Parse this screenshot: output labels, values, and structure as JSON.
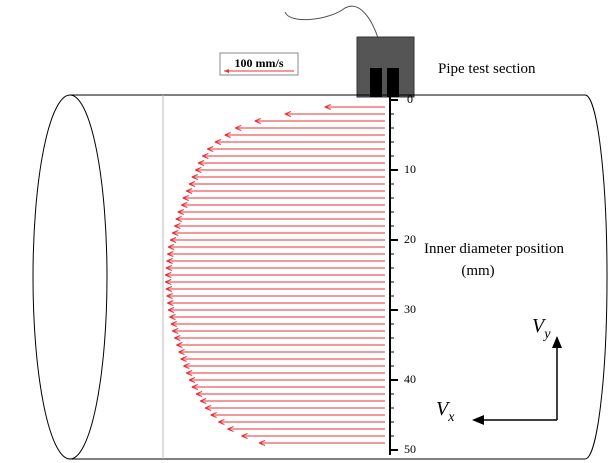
{
  "chart_data": {
    "type": "quiver",
    "title": "Pipe test section",
    "axis_label": [
      "Inner diameter position",
      "(mm)"
    ],
    "scale": {
      "value": 100,
      "label": "100 mm/s"
    },
    "annotations": [
      {
        "text": "V",
        "sub": "y"
      },
      {
        "text": "V",
        "sub": "x"
      }
    ],
    "color": "#e8303a",
    "ylim": [
      0,
      50
    ],
    "yticks": [
      0,
      10,
      20,
      30,
      40,
      50
    ],
    "x": [
      1,
      2,
      3,
      4,
      5,
      6,
      7,
      8,
      9,
      10,
      11,
      12,
      13,
      14,
      15,
      16,
      17,
      18,
      19,
      20,
      21,
      22,
      23,
      24,
      25,
      26,
      27,
      28,
      29,
      30,
      31,
      32,
      33,
      34,
      35,
      36,
      37,
      38,
      39,
      40,
      41,
      42,
      43,
      44,
      45,
      46,
      47,
      48,
      49
    ],
    "values": [
      86,
      143,
      186,
      214,
      229,
      243,
      254,
      261,
      267,
      271,
      276,
      280,
      284,
      289,
      291,
      296,
      299,
      301,
      304,
      307,
      310,
      311,
      312,
      313,
      314,
      314,
      313,
      312,
      311,
      310,
      308,
      306,
      304,
      301,
      298,
      295,
      292,
      288,
      284,
      280,
      276,
      270,
      264,
      257,
      249,
      238,
      225,
      205,
      180
    ]
  }
}
